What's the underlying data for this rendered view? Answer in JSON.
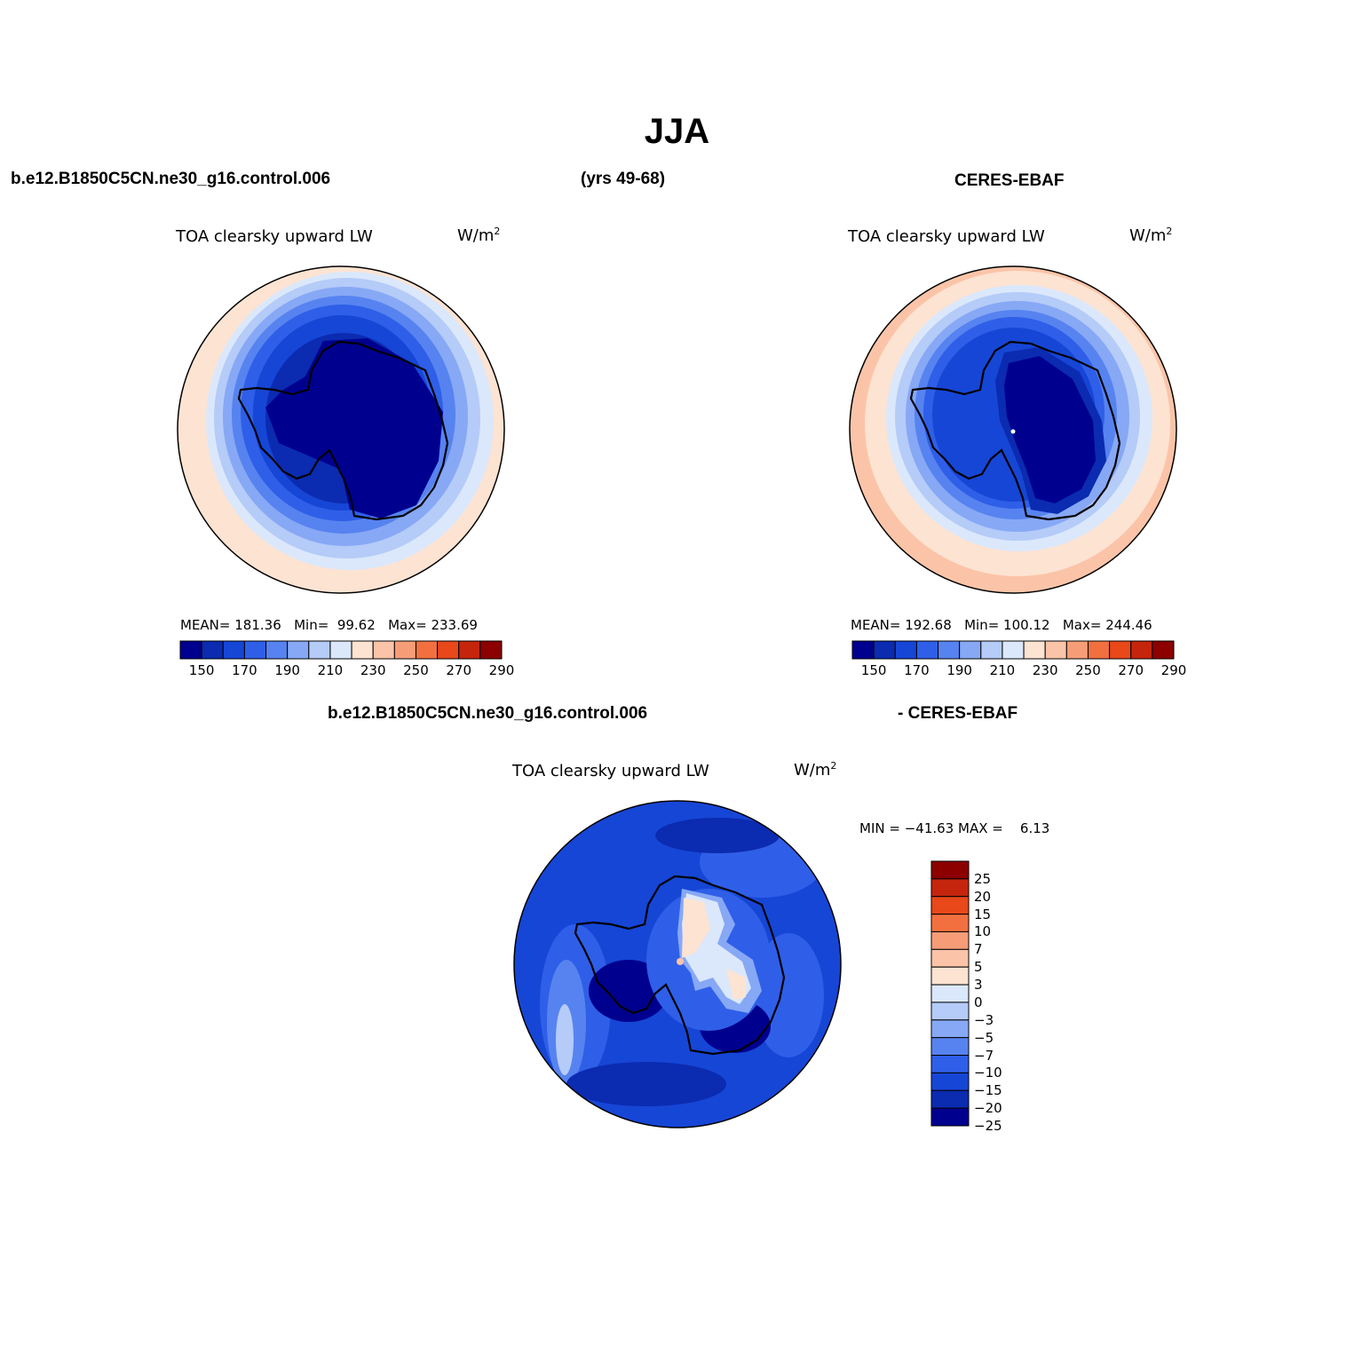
{
  "title": "JJA",
  "header": {
    "model_case": "b.e12.B1850C5CN.ne30_g16.control.006",
    "years": "(yrs 49-68)",
    "obs_name": "CERES-EBAF"
  },
  "diff_header": {
    "model_case": "b.e12.B1850C5CN.ne30_g16.control.006",
    "obs_name": "- CERES-EBAF"
  },
  "variable": "TOA clearsky upward LW",
  "units_base": "W/m",
  "units_exp": "2",
  "model_panel": {
    "mean_label": "MEAN=",
    "mean": "181.36",
    "min_label": "Min=",
    "min": "99.62",
    "max_label": "Max=",
    "max": "233.69"
  },
  "obs_panel": {
    "mean_label": "MEAN=",
    "mean": "192.68",
    "min_label": "Min=",
    "min": "100.12",
    "max_label": "Max=",
    "max": "244.46"
  },
  "diff_panel": {
    "min_label": "MIN =",
    "min": "−41.63",
    "max_label": "MAX =",
    "max": "6.13"
  },
  "colorbar_main": {
    "colors": [
      "#00008f",
      "#0b2bb0",
      "#1646d6",
      "#2f5fe8",
      "#5783f0",
      "#87a8f5",
      "#b5cbf8",
      "#dbe8fb",
      "#fde3d2",
      "#fbc4a8",
      "#f69d78",
      "#f2703f",
      "#e8481a",
      "#c5250d",
      "#8c0000"
    ],
    "labels": [
      "150",
      "170",
      "190",
      "210",
      "230",
      "250",
      "270",
      "290"
    ]
  },
  "colorbar_diff": {
    "colors": [
      "#00008f",
      "#0b2bb0",
      "#1646d6",
      "#2f5fe8",
      "#5783f0",
      "#87a8f5",
      "#b5cbf8",
      "#dbe8fb",
      "#fde3d2",
      "#fbc4a8",
      "#f69d78",
      "#f2703f",
      "#e8481a",
      "#c5250d",
      "#8c0000"
    ],
    "labels": [
      "25",
      "20",
      "15",
      "10",
      "7",
      "5",
      "3",
      "0",
      "−3",
      "−5",
      "−7",
      "−10",
      "−15",
      "−20",
      "−25"
    ]
  },
  "map_colors": {
    "continent_outline": "#000000",
    "deep_blue": "#00008f",
    "warm_fill": "#fde3d2"
  }
}
